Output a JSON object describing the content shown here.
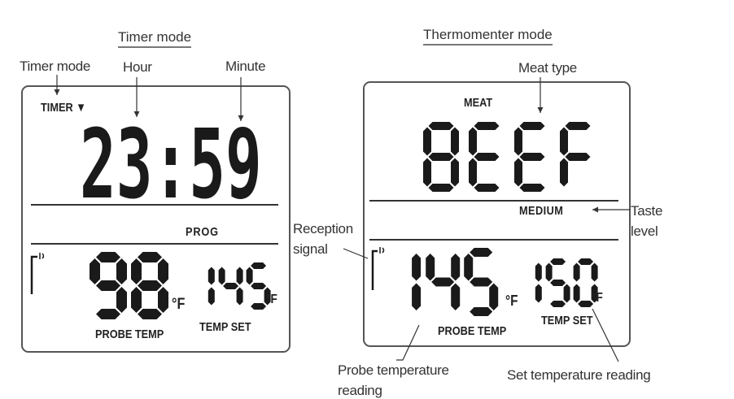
{
  "timer_panel": {
    "title": "Timer mode",
    "callouts": {
      "mode": "Timer mode",
      "hour": "Hour",
      "minute": "Minute"
    },
    "mode_indicator": "TIMER ▼",
    "time": "23:59",
    "prog_label": "PROG",
    "probe_temp": "98",
    "probe_unit": "°F",
    "probe_label": "PROBE TEMP",
    "set_temp": "145",
    "set_unit": "°F",
    "set_label": "TEMP SET",
    "signal_icon": "reception-signal-icon"
  },
  "thermo_panel": {
    "title": "Thermomenter mode",
    "callouts": {
      "meat_type": "Meat type",
      "taste_level_1": "Taste",
      "taste_level_2": "level",
      "reception_1": "Reception",
      "reception_2": "signal",
      "probe_reading_1": "Probe temperature",
      "probe_reading_2": "reading",
      "set_reading": "Set temperature reading"
    },
    "meat_label": "MEAT",
    "meat_type": "BEEF",
    "taste_level": "MEDIUM",
    "probe_temp": "145",
    "probe_unit": "°F",
    "probe_label": "PROBE TEMP",
    "set_temp": "150",
    "set_unit": "°F",
    "set_label": "TEMP SET",
    "signal_icon": "reception-signal-icon"
  },
  "colors": {
    "lcd_ink": "#1a1a1a",
    "caption": "#333333"
  }
}
